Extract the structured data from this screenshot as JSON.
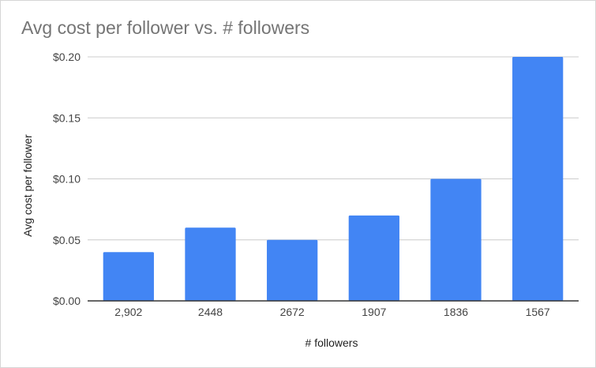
{
  "chart_data": {
    "type": "bar",
    "title": "Avg cost per follower vs. # followers",
    "xlabel": "# followers",
    "ylabel": "Avg cost per follower",
    "categories": [
      "2,902",
      "2448",
      "2672",
      "1907",
      "1836",
      "1567"
    ],
    "values": [
      0.04,
      0.06,
      0.05,
      0.07,
      0.1,
      0.2
    ],
    "ylim": [
      0,
      0.2
    ],
    "y_ticks": [
      "$0.00",
      "$0.05",
      "$0.10",
      "$0.15",
      "$0.20"
    ],
    "y_tick_values": [
      0,
      0.05,
      0.1,
      0.15,
      0.2
    ],
    "grid": true,
    "legend": "none",
    "bar_color": "#4285f4"
  }
}
